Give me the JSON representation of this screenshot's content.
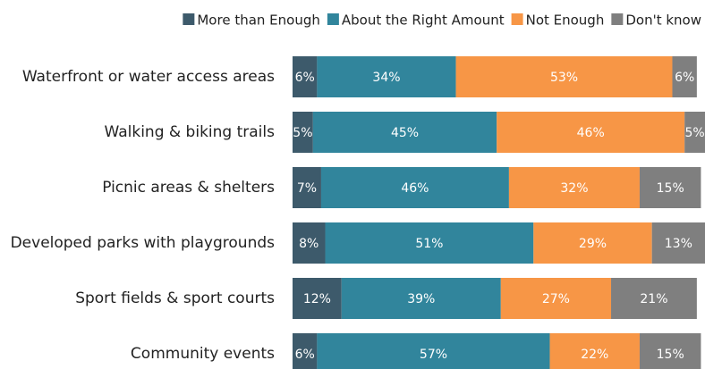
{
  "chart_data": {
    "type": "stacked_bar_horizontal",
    "categories": [
      "Waterfront or water access areas",
      "Walking & biking trails",
      "Picnic areas & shelters",
      "Developed parks with playgrounds",
      "Sport fields & sport courts",
      "Community events"
    ],
    "series": [
      {
        "name": "More than Enough",
        "color": "#3d5a6b",
        "values": [
          6,
          5,
          7,
          8,
          12,
          6
        ],
        "value_labels": [
          "6%",
          "5%",
          "7%",
          "8%",
          "12%",
          "6%"
        ]
      },
      {
        "name": "About the Right Amount",
        "color": "#31859c",
        "values": [
          34,
          45,
          46,
          51,
          39,
          57
        ],
        "value_labels": [
          "34%",
          "45%",
          "46%",
          "51%",
          "39%",
          "57%"
        ]
      },
      {
        "name": "Not Enough",
        "color": "#f79646",
        "values": [
          53,
          46,
          32,
          29,
          27,
          22
        ],
        "value_labels": [
          "53%",
          "46%",
          "32%",
          "29%",
          "27%",
          "22%"
        ]
      },
      {
        "name": "Don't know",
        "color": "#7f7f7f",
        "values": [
          6,
          5,
          15,
          13,
          21,
          15
        ],
        "value_labels": [
          "6%",
          "5%",
          "15%",
          "13%",
          "21%",
          "15%"
        ]
      }
    ],
    "legend": "top-right"
  }
}
